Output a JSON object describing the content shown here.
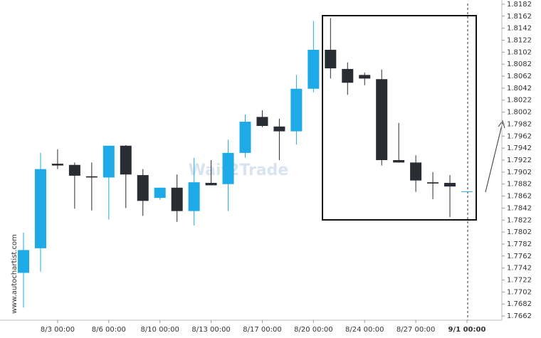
{
  "chart_data": {
    "type": "candlestick",
    "categories": [
      null,
      null,
      "8/3 00:00",
      null,
      null,
      "8/6 00:00",
      null,
      null,
      "8/10 00:00",
      null,
      null,
      "8/13 00:00",
      null,
      null,
      "8/17 00:00",
      null,
      null,
      "8/20 00:00",
      null,
      null,
      "8/24 00:00",
      null,
      null,
      "8/27 00:00",
      null,
      null,
      "9/1 00:00"
    ],
    "open": [
      1.7734,
      1.7775,
      1.7916,
      1.7914,
      1.7895,
      1.7893,
      1.7946,
      1.7897,
      1.7859,
      1.7876,
      1.7837,
      1.7884,
      1.7882,
      1.7934,
      1.7994,
      1.7978,
      1.797,
      1.8041,
      1.8106,
      1.8074,
      1.8064,
      1.8057,
      1.7922,
      1.7918,
      1.7885,
      1.7884,
      1.787
    ],
    "high": [
      1.7801,
      1.7934,
      1.794,
      1.7918,
      1.7918,
      1.7946,
      1.7947,
      1.7907,
      1.7876,
      1.7898,
      1.7926,
      1.7922,
      1.7956,
      1.7998,
      1.8005,
      1.7991,
      1.8064,
      1.8154,
      1.8159,
      1.8085,
      1.8068,
      1.8073,
      1.7984,
      1.793,
      1.7902,
      1.7897,
      1.787
    ],
    "low": [
      1.7676,
      1.7736,
      1.7907,
      1.7841,
      1.7838,
      1.7823,
      1.7842,
      1.7829,
      1.7856,
      1.7819,
      1.7813,
      1.788,
      1.7837,
      1.7926,
      1.7977,
      1.7922,
      1.7948,
      1.8035,
      1.8058,
      1.8031,
      1.8047,
      1.7913,
      1.7918,
      1.7869,
      1.7857,
      1.7827,
      1.787
    ],
    "close": [
      1.7772,
      1.7907,
      1.7913,
      1.7896,
      1.7893,
      1.7946,
      1.7898,
      1.7854,
      1.7876,
      1.7837,
      1.7885,
      1.788,
      1.7934,
      1.7986,
      1.7979,
      1.797,
      1.8041,
      1.8106,
      1.8075,
      1.8051,
      1.8058,
      1.7922,
      1.7918,
      1.7888,
      1.7883,
      1.7878,
      1.787
    ],
    "up_color": "#1eaae7",
    "down_color": "#2a2c33",
    "ylim": [
      1.7655,
      1.8189
    ],
    "yticks": [
      1.8182,
      1.8162,
      1.8142,
      1.8122,
      1.8102,
      1.8082,
      1.8062,
      1.8042,
      1.8022,
      1.8002,
      1.7982,
      1.7962,
      1.7942,
      1.7922,
      1.7902,
      1.7882,
      1.7862,
      1.7842,
      1.7822,
      1.7802,
      1.7782,
      1.7762,
      1.7742,
      1.7722,
      1.7702,
      1.7682,
      1.7662
    ],
    "watermark": "Wait2Trade",
    "source": "www.autochartist.com"
  }
}
